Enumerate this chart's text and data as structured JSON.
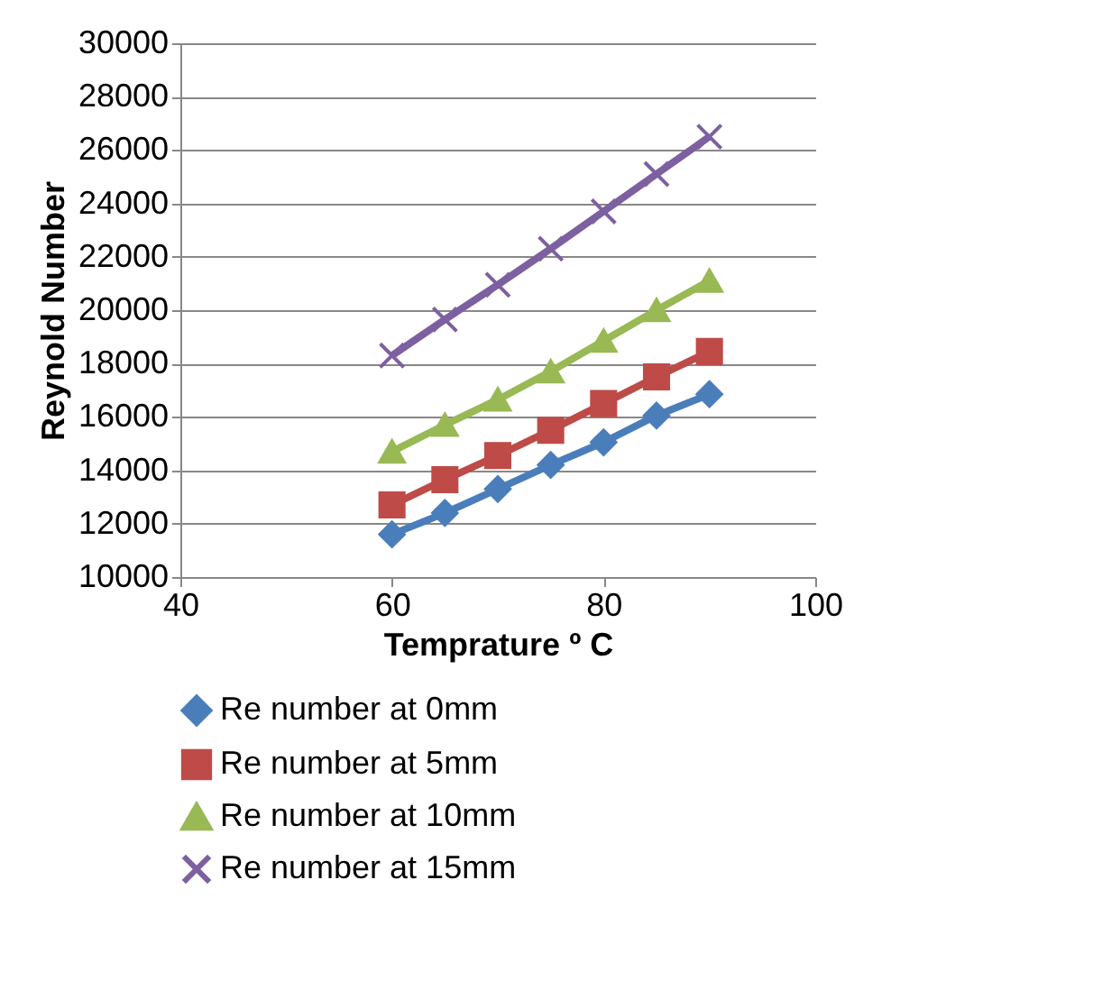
{
  "chart_data": {
    "type": "line",
    "xlabel": "Temprature º C",
    "ylabel": "Reynold Number",
    "x": [
      60,
      65,
      70,
      75,
      80,
      85,
      90
    ],
    "xlim": [
      40,
      100
    ],
    "xticks": [
      40,
      60,
      80,
      100
    ],
    "ylim": [
      10000,
      30000
    ],
    "yticks": [
      10000,
      12000,
      14000,
      16000,
      18000,
      20000,
      22000,
      24000,
      26000,
      28000,
      30000
    ],
    "grid": "y",
    "legend": "bottom",
    "series": [
      {
        "name": "Re number at 0mm",
        "color": "#4a7ebb",
        "marker": "diamond",
        "values": [
          11600,
          12400,
          13300,
          14200,
          15050,
          16050,
          16850
        ]
      },
      {
        "name": "Re number at 5mm",
        "color": "#be4b48",
        "marker": "square",
        "values": [
          12700,
          13650,
          14550,
          15500,
          16500,
          17500,
          18450
        ]
      },
      {
        "name": "Re number at 10mm",
        "color": "#98b954",
        "marker": "triangle",
        "values": [
          14700,
          15700,
          16650,
          17700,
          18850,
          20000,
          21100
        ]
      },
      {
        "name": "Re number at 15mm",
        "color": "#7d60a0",
        "marker": "cross",
        "values": [
          18300,
          19650,
          20950,
          22300,
          23700,
          25100,
          26500
        ]
      }
    ]
  }
}
